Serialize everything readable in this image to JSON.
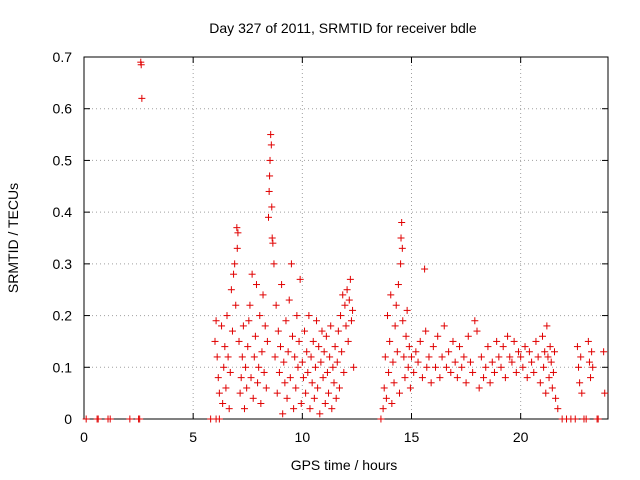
{
  "chart_data": {
    "type": "scatter",
    "title": "Day 327 of 2011, SRMTID for receiver bdle",
    "xlabel": "GPS time / hours",
    "ylabel": "SRMTID / TECUs",
    "xlim": [
      0,
      24
    ],
    "ylim": [
      0,
      0.7
    ],
    "xticks": [
      0,
      5,
      10,
      15,
      20
    ],
    "xtick_labels": [
      "0",
      "5",
      "10",
      "15",
      "20"
    ],
    "yticks": [
      0,
      0.1,
      0.2,
      0.3,
      0.4,
      0.5,
      0.6,
      0.7
    ],
    "ytick_labels": [
      "0",
      "0.1",
      "0.2",
      "0.3",
      "0.4",
      "0.5",
      "0.6",
      "0.7"
    ],
    "grid": true,
    "marker": "+",
    "color": "#e00000",
    "series": [
      {
        "name": "SRMTID",
        "points": [
          [
            0.1,
            0
          ],
          [
            0.6,
            0
          ],
          [
            0.65,
            0
          ],
          [
            1.1,
            0
          ],
          [
            1.2,
            0
          ],
          [
            2.1,
            0
          ],
          [
            2.5,
            0
          ],
          [
            2.55,
            0
          ],
          [
            2.6,
            0.69
          ],
          [
            2.62,
            0.685
          ],
          [
            2.65,
            0.62
          ],
          [
            5.8,
            0
          ],
          [
            6.05,
            0
          ],
          [
            6.2,
            0
          ],
          [
            6.0,
            0.15
          ],
          [
            6.05,
            0.19
          ],
          [
            6.1,
            0.12
          ],
          [
            6.15,
            0.08
          ],
          [
            6.2,
            0.05
          ],
          [
            6.3,
            0.18
          ],
          [
            6.35,
            0.03
          ],
          [
            6.4,
            0.1
          ],
          [
            6.45,
            0.14
          ],
          [
            6.5,
            0.06
          ],
          [
            6.55,
            0.2
          ],
          [
            6.6,
            0.12
          ],
          [
            6.65,
            0.02
          ],
          [
            6.7,
            0.09
          ],
          [
            6.75,
            0.25
          ],
          [
            6.8,
            0.17
          ],
          [
            6.85,
            0.28
          ],
          [
            6.9,
            0.3
          ],
          [
            6.95,
            0.22
          ],
          [
            7.0,
            0.37
          ],
          [
            7.02,
            0.33
          ],
          [
            7.05,
            0.36
          ],
          [
            7.1,
            0.15
          ],
          [
            7.15,
            0.05
          ],
          [
            7.2,
            0.08
          ],
          [
            7.25,
            0.12
          ],
          [
            7.3,
            0.18
          ],
          [
            7.35,
            0.02
          ],
          [
            7.4,
            0.1
          ],
          [
            7.45,
            0.06
          ],
          [
            7.5,
            0.14
          ],
          [
            7.55,
            0.19
          ],
          [
            7.6,
            0.22
          ],
          [
            7.65,
            0.08
          ],
          [
            7.7,
            0.28
          ],
          [
            7.75,
            0.04
          ],
          [
            7.8,
            0.12
          ],
          [
            7.85,
            0.16
          ],
          [
            7.9,
            0.26
          ],
          [
            7.95,
            0.07
          ],
          [
            8.0,
            0.1
          ],
          [
            8.05,
            0.2
          ],
          [
            8.1,
            0.03
          ],
          [
            8.15,
            0.13
          ],
          [
            8.2,
            0.24
          ],
          [
            8.25,
            0.09
          ],
          [
            8.3,
            0.18
          ],
          [
            8.35,
            0.06
          ],
          [
            8.4,
            0.15
          ],
          [
            8.45,
            0.39
          ],
          [
            8.48,
            0.44
          ],
          [
            8.5,
            0.47
          ],
          [
            8.52,
            0.5
          ],
          [
            8.55,
            0.55
          ],
          [
            8.58,
            0.53
          ],
          [
            8.6,
            0.41
          ],
          [
            8.62,
            0.35
          ],
          [
            8.65,
            0.34
          ],
          [
            8.7,
            0.3
          ],
          [
            8.75,
            0.12
          ],
          [
            8.8,
            0.22
          ],
          [
            8.85,
            0.05
          ],
          [
            8.9,
            0.17
          ],
          [
            8.95,
            0.09
          ],
          [
            9.0,
            0.14
          ],
          [
            9.05,
            0.26
          ],
          [
            9.1,
            0.01
          ],
          [
            9.15,
            0.11
          ],
          [
            9.2,
            0.07
          ],
          [
            9.25,
            0.19
          ],
          [
            9.3,
            0.04
          ],
          [
            9.35,
            0.13
          ],
          [
            9.4,
            0.23
          ],
          [
            9.45,
            0.08
          ],
          [
            9.5,
            0.3
          ],
          [
            9.55,
            0.16
          ],
          [
            9.6,
            0.02
          ],
          [
            9.65,
            0.12
          ],
          [
            9.7,
            0.06
          ],
          [
            9.75,
            0.2
          ],
          [
            9.8,
            0.1
          ],
          [
            9.85,
            0.15
          ],
          [
            9.9,
            0.27
          ],
          [
            9.95,
            0.03
          ],
          [
            10.0,
            0.11
          ],
          [
            10.05,
            0.08
          ],
          [
            10.1,
            0.17
          ],
          [
            10.15,
            0.05
          ],
          [
            10.2,
            0.13
          ],
          [
            10.25,
            0.09
          ],
          [
            10.3,
            0.2
          ],
          [
            10.35,
            0.02
          ],
          [
            10.4,
            0.12
          ],
          [
            10.45,
            0.07
          ],
          [
            10.5,
            0.15
          ],
          [
            10.55,
            0.04
          ],
          [
            10.6,
            0.1
          ],
          [
            10.65,
            0.19
          ],
          [
            10.7,
            0.06
          ],
          [
            10.75,
            0.14
          ],
          [
            10.8,
            0.01
          ],
          [
            10.85,
            0.11
          ],
          [
            10.9,
            0.17
          ],
          [
            10.95,
            0.08
          ],
          [
            11.0,
            0.13
          ],
          [
            11.05,
            0.03
          ],
          [
            11.1,
            0.16
          ],
          [
            11.15,
            0.09
          ],
          [
            11.2,
            0.05
          ],
          [
            11.25,
            0.12
          ],
          [
            11.3,
            0.18
          ],
          [
            11.35,
            0.02
          ],
          [
            11.4,
            0.1
          ],
          [
            11.45,
            0.07
          ],
          [
            11.5,
            0.14
          ],
          [
            11.55,
            0.04
          ],
          [
            11.6,
            0.11
          ],
          [
            11.65,
            0.17
          ],
          [
            11.7,
            0.06
          ],
          [
            11.75,
            0.2
          ],
          [
            11.8,
            0.13
          ],
          [
            11.85,
            0.24
          ],
          [
            11.9,
            0.09
          ],
          [
            11.95,
            0.22
          ],
          [
            12.0,
            0.18
          ],
          [
            12.05,
            0.25
          ],
          [
            12.1,
            0.15
          ],
          [
            12.15,
            0.23
          ],
          [
            12.2,
            0.27
          ],
          [
            12.25,
            0.19
          ],
          [
            12.3,
            0.21
          ],
          [
            12.35,
            0.1
          ],
          [
            13.6,
            0
          ],
          [
            13.7,
            0.02
          ],
          [
            13.75,
            0.06
          ],
          [
            13.8,
            0.12
          ],
          [
            13.85,
            0.04
          ],
          [
            13.9,
            0.2
          ],
          [
            13.95,
            0.09
          ],
          [
            14.0,
            0.15
          ],
          [
            14.05,
            0.24
          ],
          [
            14.1,
            0.03
          ],
          [
            14.15,
            0.11
          ],
          [
            14.2,
            0.07
          ],
          [
            14.25,
            0.18
          ],
          [
            14.3,
            0.22
          ],
          [
            14.35,
            0.13
          ],
          [
            14.4,
            0.26
          ],
          [
            14.45,
            0.05
          ],
          [
            14.5,
            0.3
          ],
          [
            14.52,
            0.35
          ],
          [
            14.55,
            0.38
          ],
          [
            14.58,
            0.33
          ],
          [
            14.6,
            0.19
          ],
          [
            14.65,
            0.12
          ],
          [
            14.7,
            0.08
          ],
          [
            14.75,
            0.16
          ],
          [
            14.8,
            0.21
          ],
          [
            14.85,
            0.1
          ],
          [
            14.9,
            0.14
          ],
          [
            14.95,
            0.06
          ],
          [
            15.0,
            0.12
          ],
          [
            15.1,
            0.09
          ],
          [
            15.2,
            0.13
          ],
          [
            15.3,
            0.11
          ],
          [
            15.4,
            0.15
          ],
          [
            15.5,
            0.08
          ],
          [
            15.6,
            0.29
          ],
          [
            15.65,
            0.17
          ],
          [
            15.7,
            0.1
          ],
          [
            15.8,
            0.12
          ],
          [
            15.9,
            0.07
          ],
          [
            16.0,
            0.14
          ],
          [
            16.1,
            0.1
          ],
          [
            16.2,
            0.16
          ],
          [
            16.3,
            0.08
          ],
          [
            16.4,
            0.12
          ],
          [
            16.5,
            0.18
          ],
          [
            16.6,
            0.1
          ],
          [
            16.7,
            0.13
          ],
          [
            16.8,
            0.09
          ],
          [
            16.9,
            0.15
          ],
          [
            17.0,
            0.11
          ],
          [
            17.1,
            0.08
          ],
          [
            17.2,
            0.14
          ],
          [
            17.3,
            0.1
          ],
          [
            17.4,
            0.12
          ],
          [
            17.5,
            0.07
          ],
          [
            17.6,
            0.16
          ],
          [
            17.7,
            0.11
          ],
          [
            17.8,
            0.09
          ],
          [
            17.9,
            0.19
          ],
          [
            18.0,
            0.17
          ],
          [
            18.1,
            0.06
          ],
          [
            18.2,
            0.12
          ],
          [
            18.3,
            0.08
          ],
          [
            18.4,
            0.1
          ],
          [
            18.5,
            0.14
          ],
          [
            18.6,
            0.07
          ],
          [
            18.7,
            0.11
          ],
          [
            18.8,
            0.09
          ],
          [
            18.9,
            0.15
          ],
          [
            19.0,
            0.12
          ],
          [
            19.1,
            0.1
          ],
          [
            19.2,
            0.14
          ],
          [
            19.3,
            0.08
          ],
          [
            19.4,
            0.16
          ],
          [
            19.5,
            0.12
          ],
          [
            19.6,
            0.11
          ],
          [
            19.7,
            0.15
          ],
          [
            19.8,
            0.09
          ],
          [
            19.9,
            0.13
          ],
          [
            20.0,
            0.12
          ],
          [
            20.1,
            0.1
          ],
          [
            20.2,
            0.14
          ],
          [
            20.3,
            0.08
          ],
          [
            20.4,
            0.13
          ],
          [
            20.5,
            0.11
          ],
          [
            20.6,
            0.09
          ],
          [
            20.7,
            0.15
          ],
          [
            20.8,
            0.12
          ],
          [
            20.9,
            0.07
          ],
          [
            21.0,
            0.16
          ],
          [
            21.05,
            0.1
          ],
          [
            21.1,
            0.13
          ],
          [
            21.15,
            0.05
          ],
          [
            21.2,
            0.18
          ],
          [
            21.25,
            0.12
          ],
          [
            21.3,
            0.08
          ],
          [
            21.35,
            0.14
          ],
          [
            21.4,
            0.11
          ],
          [
            21.45,
            0.06
          ],
          [
            21.5,
            0.09
          ],
          [
            21.55,
            0.13
          ],
          [
            21.6,
            0.04
          ],
          [
            21.7,
            0.02
          ],
          [
            21.9,
            0
          ],
          [
            22.1,
            0
          ],
          [
            22.3,
            0
          ],
          [
            22.5,
            0
          ],
          [
            22.6,
            0.14
          ],
          [
            22.65,
            0.1
          ],
          [
            22.7,
            0.07
          ],
          [
            22.75,
            0.12
          ],
          [
            22.8,
            0.05
          ],
          [
            22.9,
            0
          ],
          [
            23.0,
            0
          ],
          [
            23.1,
            0.15
          ],
          [
            23.15,
            0.11
          ],
          [
            23.2,
            0.08
          ],
          [
            23.25,
            0.13
          ],
          [
            23.3,
            0.1
          ],
          [
            23.5,
            0
          ],
          [
            23.55,
            0
          ],
          [
            23.8,
            0.13
          ],
          [
            23.85,
            0.05
          ]
        ]
      }
    ]
  }
}
